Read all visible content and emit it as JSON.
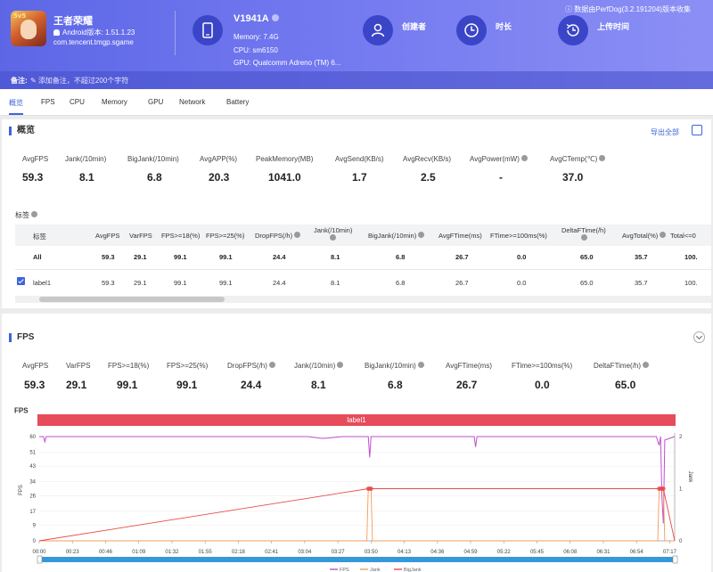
{
  "app": {
    "name": "王者荣耀",
    "android_version": "Android版本: 1.51.1.23",
    "package": "com.tencent.tmgp.sgame"
  },
  "device": {
    "name": "V1941A",
    "memory": "Memory: 7.4G",
    "cpu": "CPU: sm6150",
    "gpu": "GPU: Qualcomm Adreno (TM) 6..."
  },
  "header": {
    "creator_label": "创建者",
    "duration_label": "时长",
    "upload_label": "上传时间",
    "perfdog_text": "数据由PerfDog(3.2.191204)版本收集",
    "note_label": "备注:",
    "note_placeholder": "添加备注，不超过200个字符"
  },
  "tabs": [
    "概览",
    "FPS",
    "CPU",
    "Memory",
    "GPU",
    "Network",
    "Battery"
  ],
  "overview": {
    "title": "概览",
    "export_label": "导出全部",
    "metrics": [
      {
        "label": "AvgFPS",
        "value": "59.3"
      },
      {
        "label": "Jank(/10min)",
        "value": "8.1"
      },
      {
        "label": "BigJank(/10min)",
        "value": "6.8"
      },
      {
        "label": "AvgAPP(%)",
        "value": "20.3"
      },
      {
        "label": "PeakMemory(MB)",
        "value": "1041.0"
      },
      {
        "label": "AvgSend(KB/s)",
        "value": "1.7"
      },
      {
        "label": "AvgRecv(KB/s)",
        "value": "2.5"
      },
      {
        "label": "AvgPower(mW)",
        "value": "-"
      },
      {
        "label": "AvgCTemp(℃)",
        "value": "37.0"
      }
    ],
    "tags_title": "标签",
    "table": {
      "headers": [
        "标签",
        "AvgFPS",
        "VarFPS",
        "FPS>=18(%)",
        "FPS>=25(%)",
        "DropFPS(/h)",
        "Jank(/10min)",
        "BigJank(/10min)",
        "AvgFTime(ms)",
        "FTime>=100ms(%)",
        "DeltaFTime(/h)",
        "AvgTotal(%)",
        "Total<=0"
      ],
      "rows": [
        [
          "All",
          "59.3",
          "29.1",
          "99.1",
          "99.1",
          "24.4",
          "8.1",
          "6.8",
          "26.7",
          "0.0",
          "65.0",
          "35.7",
          "100."
        ],
        [
          "label1",
          "59.3",
          "29.1",
          "99.1",
          "99.1",
          "24.4",
          "8.1",
          "6.8",
          "26.7",
          "0.0",
          "65.0",
          "35.7",
          "100."
        ]
      ]
    }
  },
  "fps": {
    "title": "FPS",
    "metrics": [
      {
        "label": "AvgFPS",
        "value": "59.3"
      },
      {
        "label": "VarFPS",
        "value": "29.1"
      },
      {
        "label": "FPS>=18(%)",
        "value": "99.1"
      },
      {
        "label": "FPS>=25(%)",
        "value": "99.1"
      },
      {
        "label": "DropFPS(/h)",
        "value": "24.4"
      },
      {
        "label": "Jank(/10min)",
        "value": "8.1"
      },
      {
        "label": "BigJank(/10min)",
        "value": "6.8"
      },
      {
        "label": "AvgFTime(ms)",
        "value": "26.7"
      },
      {
        "label": "FTime>=100ms(%)",
        "value": "0.0"
      },
      {
        "label": "DeltaFTime(/h)",
        "value": "65.0"
      }
    ]
  },
  "colors": {
    "header_start": "#5d67e6",
    "header_end": "#8b8ff5",
    "accent": "#3e64d8",
    "label_band": "#e64c5a",
    "fps_line": "#c04fd0",
    "jank_line": "#f29c59",
    "bigjank_line": "#e84a4a"
  },
  "chart_data": {
    "type": "line",
    "title": "FPS",
    "label_band": "label1",
    "ylabel": "FPS",
    "y2label": "Jank",
    "ylim": [
      0,
      60
    ],
    "y2lim": [
      0,
      2
    ],
    "yticks": [
      0,
      9,
      17,
      26,
      34,
      43,
      51,
      60
    ],
    "y2ticks": [
      0,
      1,
      2
    ],
    "xticks": [
      "00:00",
      "00:23",
      "00:46",
      "01:09",
      "01:32",
      "01:55",
      "02:18",
      "02:41",
      "03:04",
      "03:27",
      "03:50",
      "04:13",
      "04:36",
      "04:59",
      "05:22",
      "05:45",
      "06:08",
      "06:31",
      "06:54",
      "07:17"
    ],
    "xlim_seconds": [
      0,
      450
    ],
    "legend": [
      "FPS",
      "Jank",
      "BigJank"
    ],
    "series": [
      {
        "name": "FPS",
        "axis": "left",
        "x": [
          0,
          3,
          4,
          5,
          60,
          150,
          190,
          200,
          201,
          202,
          215,
          233,
          234,
          235,
          250,
          300,
          308,
          309,
          310,
          315,
          338,
          345,
          348,
          360,
          400,
          430,
          437,
          439,
          440,
          441,
          442,
          443,
          450
        ],
        "y": [
          60,
          60,
          57,
          60,
          60,
          60,
          60,
          59,
          59,
          59,
          60,
          60,
          48,
          60,
          60,
          60,
          60,
          54,
          60,
          60,
          60,
          60,
          60,
          60,
          60,
          60,
          60,
          55,
          60,
          25,
          10,
          58,
          60
        ]
      },
      {
        "name": "Jank",
        "axis": "right",
        "x": [
          0,
          232,
          233,
          234,
          235,
          236,
          430,
          438,
          439,
          440,
          441,
          442,
          443,
          450
        ],
        "y": [
          0,
          0,
          1,
          1,
          1,
          0,
          0,
          0,
          1,
          1,
          1,
          1,
          0,
          0
        ]
      },
      {
        "name": "BigJank",
        "axis": "right",
        "x": [
          0,
          233,
          234,
          235,
          439,
          440,
          441,
          442,
          450
        ],
        "y": [
          0,
          1,
          1,
          1,
          1,
          1,
          1,
          1,
          0
        ]
      }
    ]
  }
}
